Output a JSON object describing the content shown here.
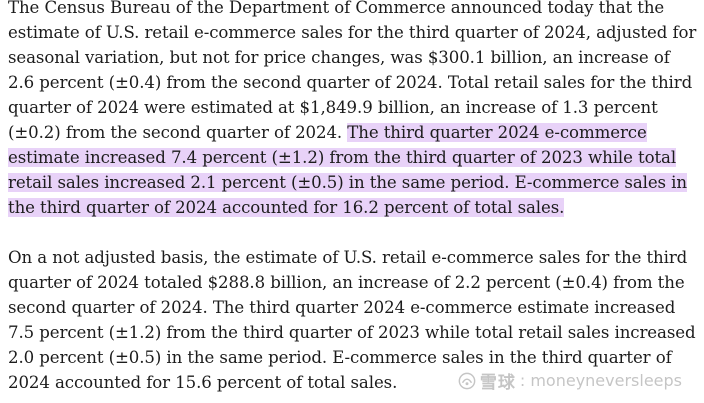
{
  "article": {
    "p1_lead": "The Census Bureau of the Department of Commerce announced today that the estimate of U.S. retail e-commerce sales for the third quarter of 2024, adjusted for seasonal variation, but not for price changes, was $300.1 billion, an increase of 2.6 percent (±0.4) from the second quarter of 2024. Total retail sales for the third quarter of 2024 were estimated at $1,849.9 billion, an increase of 1.3 percent (±0.2) from the second quarter of 2024. ",
    "p1_highlight": "The third quarter 2024 e-commerce estimate increased 7.4 percent (±1.2) from the third quarter of 2023 while total retail sales increased 2.1 percent (±0.5) in the same period. E-commerce sales in the third quarter of 2024 accounted for 16.2 percent of total sales.",
    "p2": "On a not adjusted basis, the estimate of U.S. retail e-commerce sales for the third quarter of 2024 totaled $288.8 billion, an increase of 2.2 percent (±0.4) from the second quarter of 2024. The third quarter 2024 e-commerce estimate increased 7.5 percent (±1.2) from the third quarter of 2023 while total retail sales increased 2.0 percent (±0.5) in the same period. E-commerce sales in the third quarter of 2024 accounted for 15.6 percent of total sales."
  },
  "watermark": {
    "brand": "雪球",
    "handle": ": moneyneversleeps"
  },
  "colors": {
    "highlight": "#e8d2f8",
    "text": "#1c1c1c"
  }
}
